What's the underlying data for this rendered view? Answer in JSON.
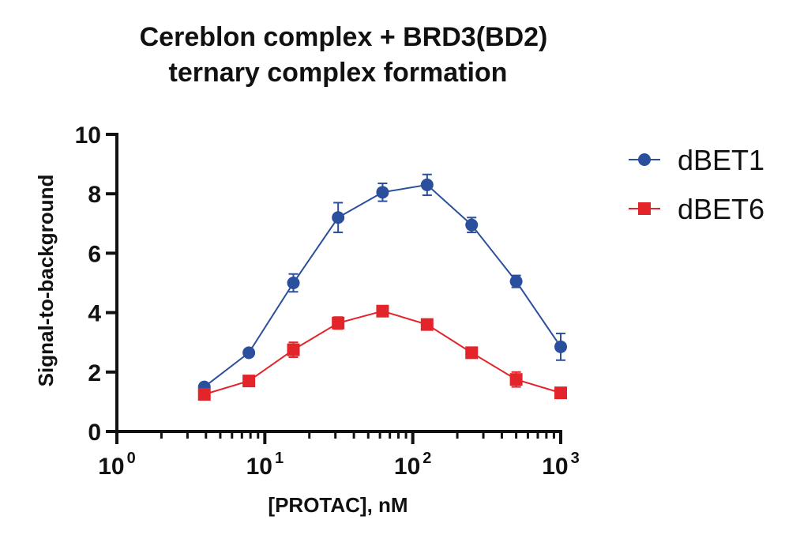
{
  "chart_data": {
    "type": "line",
    "title_lines": [
      "Cereblon complex + BRD3(BD2)",
      "ternary complex formation"
    ],
    "xlabel": "[PROTAC], nM",
    "ylabel": "Signal-to-background",
    "xscale": "log10",
    "xlim": [
      1,
      1000
    ],
    "ylim": [
      0,
      10
    ],
    "y_ticks": [
      0,
      2,
      4,
      6,
      8,
      10
    ],
    "x_ticks": [
      {
        "value": 1,
        "base": "10",
        "exp": "0"
      },
      {
        "value": 10,
        "base": "10",
        "exp": "1"
      },
      {
        "value": 100,
        "base": "10",
        "exp": "2"
      },
      {
        "value": 1000,
        "base": "10",
        "exp": "3"
      }
    ],
    "legend_position": "right",
    "series": [
      {
        "name": "dBET1",
        "color": "#2a4f9c",
        "marker": "circle",
        "x": [
          3.9,
          7.8,
          15.6,
          31.3,
          62.5,
          125,
          250,
          500,
          1000
        ],
        "y": [
          1.5,
          2.65,
          5.0,
          7.2,
          8.05,
          8.3,
          6.95,
          5.05,
          2.85
        ],
        "err": [
          0.1,
          0.12,
          0.3,
          0.5,
          0.3,
          0.35,
          0.25,
          0.2,
          0.45
        ]
      },
      {
        "name": "dBET6",
        "color": "#e3242b",
        "marker": "square",
        "x": [
          3.9,
          7.8,
          15.6,
          31.3,
          62.5,
          125,
          250,
          500,
          1000
        ],
        "y": [
          1.25,
          1.7,
          2.75,
          3.65,
          4.05,
          3.6,
          2.65,
          1.75,
          1.3
        ],
        "err": [
          0.08,
          0.1,
          0.25,
          0.2,
          0.12,
          0.15,
          0.1,
          0.25,
          0.1
        ]
      }
    ]
  }
}
